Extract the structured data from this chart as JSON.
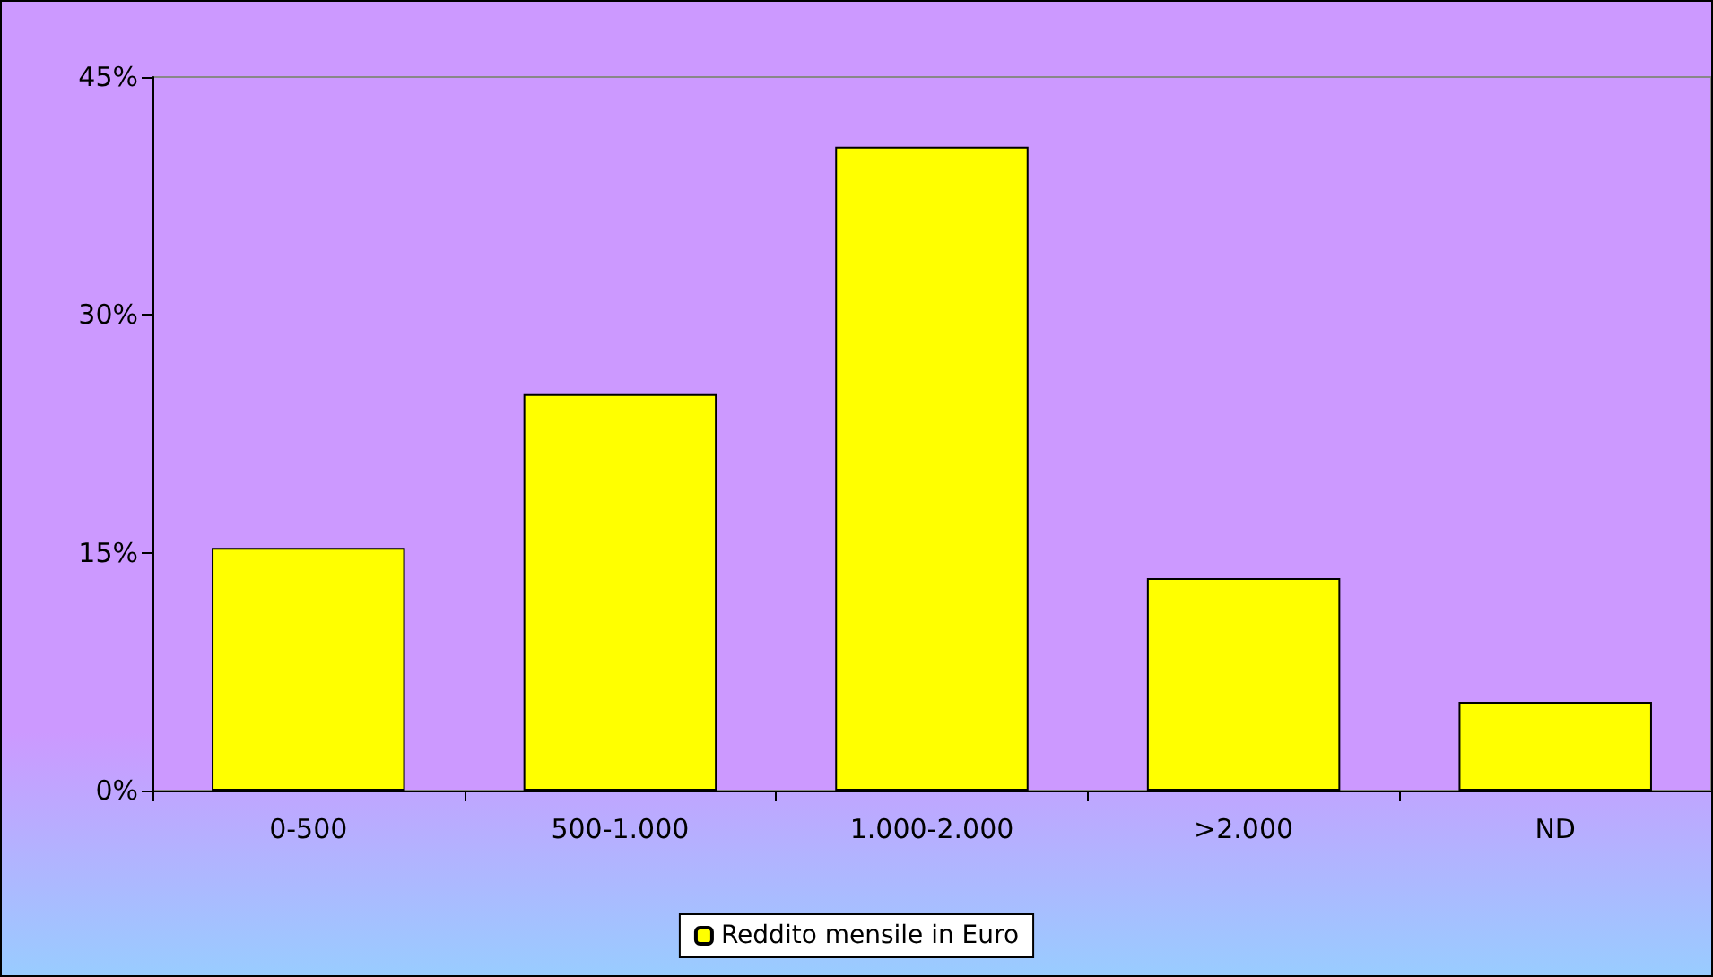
{
  "chart_data": {
    "type": "bar",
    "categories": [
      "0-500",
      "500-1.000",
      "1.000-2.000",
      ">2.000",
      "ND"
    ],
    "series": [
      {
        "name": "Reddito mensile in Euro",
        "color": "#ffff00",
        "values": [
          15.3,
          25.0,
          40.6,
          13.4,
          5.6
        ]
      }
    ],
    "ylim": [
      0,
      45
    ],
    "yticks": [
      {
        "value": 0,
        "label": "0%"
      },
      {
        "value": 15,
        "label": "15%"
      },
      {
        "value": 30,
        "label": "30%"
      },
      {
        "value": 45,
        "label": "45%"
      }
    ],
    "grid": false,
    "legend": "bottom"
  }
}
